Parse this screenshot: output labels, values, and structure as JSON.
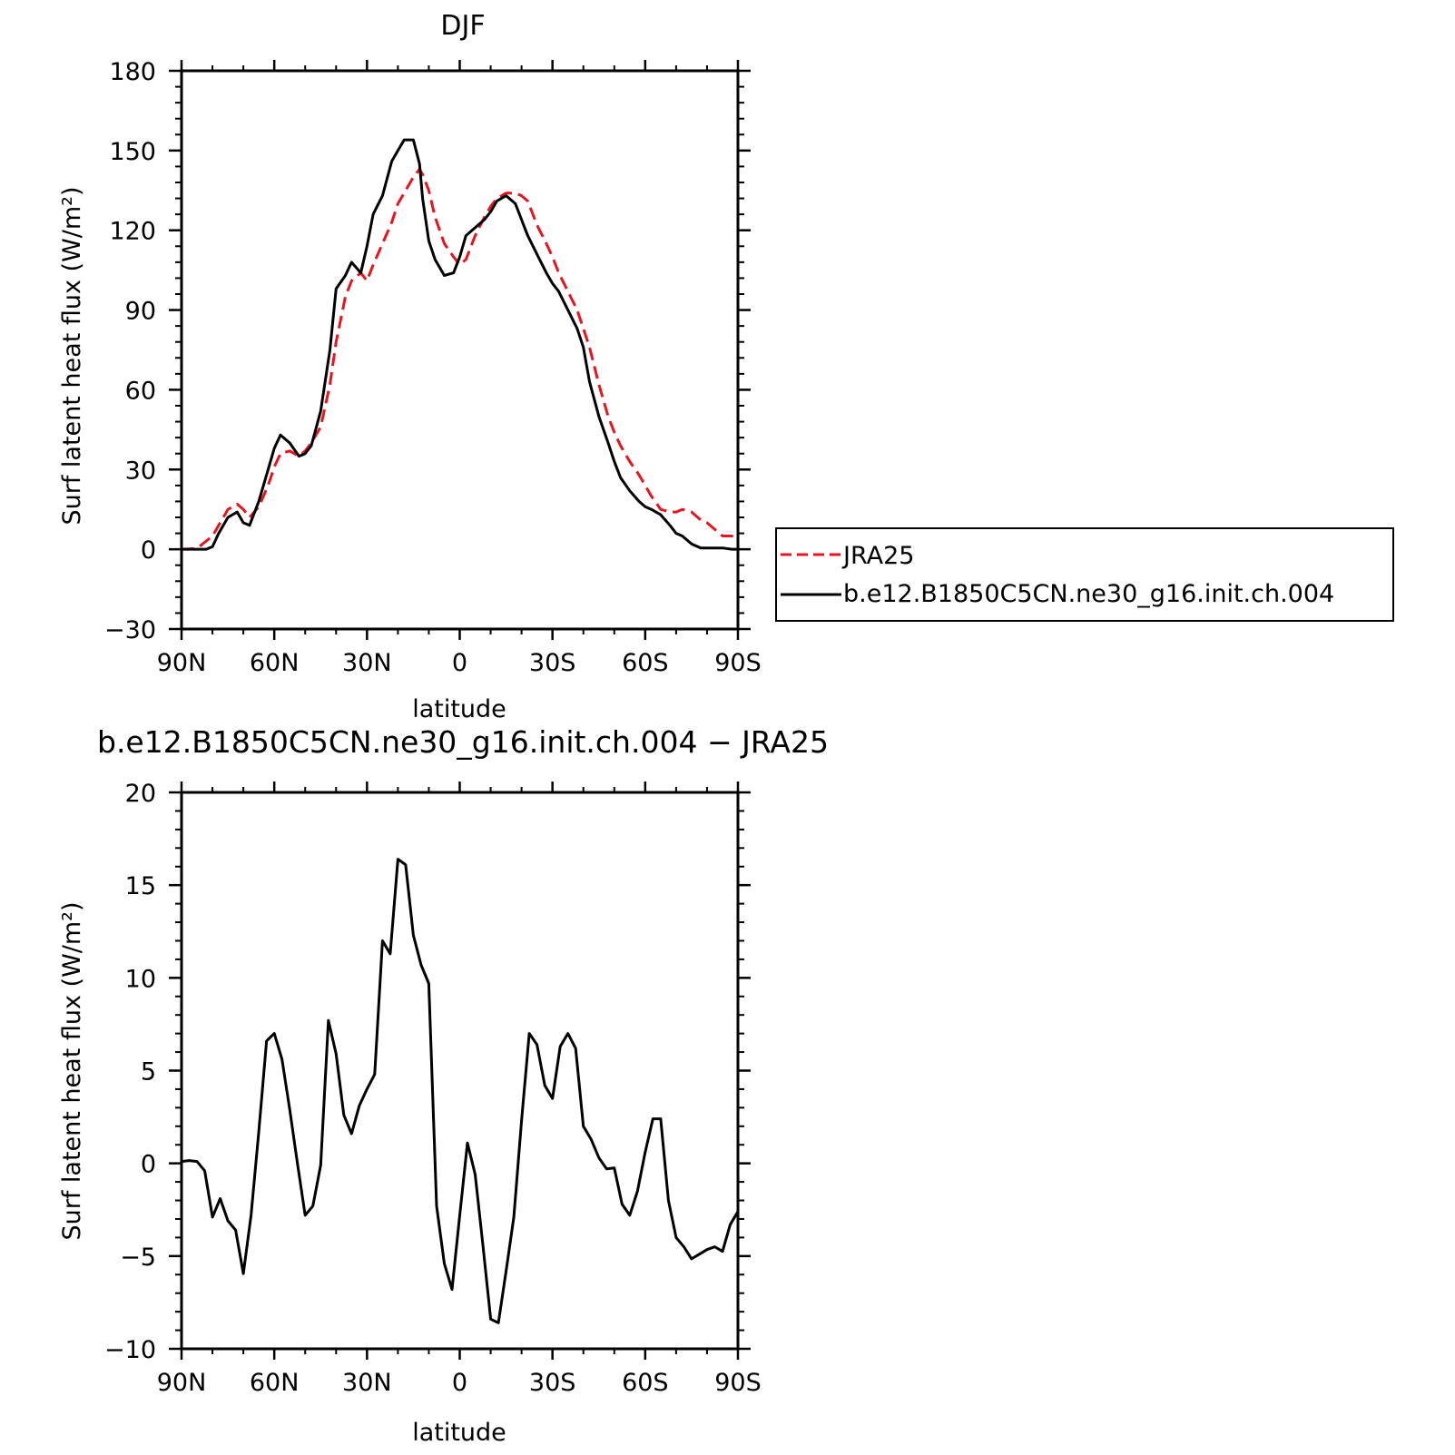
{
  "colors": {
    "model": "#000000",
    "obs": "#e8141e",
    "axes": "#000000",
    "background": "#ffffff"
  },
  "chart_data": [
    {
      "type": "line",
      "title": "DJF",
      "xlabel": "latitude",
      "ylabel": "Surf latent heat flux (W/m²)",
      "xlim": [
        90,
        -90
      ],
      "ylim": [
        -30,
        180
      ],
      "xticks": [
        90,
        60,
        30,
        0,
        -30,
        -60,
        -90
      ],
      "xticklabels": [
        "90N",
        "60N",
        "30N",
        "0",
        "30S",
        "60S",
        "90S"
      ],
      "yticks": [
        -30,
        0,
        30,
        60,
        90,
        120,
        150,
        180
      ],
      "yticklabels": [
        "−30",
        "0",
        "30",
        "60",
        "90",
        "120",
        "150",
        "180"
      ],
      "legend": {
        "placement": "right",
        "entries": [
          "JRA25",
          "b.e12.B1850C5CN.ne30_g16.init.ch.004"
        ]
      },
      "series": [
        {
          "name": "JRA25",
          "style": "dashed",
          "color": "#e8141e",
          "x": [
            90,
            85,
            80,
            78,
            75,
            72,
            70,
            68,
            65,
            62,
            60,
            58,
            55,
            52,
            50,
            48,
            45,
            42,
            40,
            37,
            35,
            32,
            30,
            28,
            25,
            22,
            20,
            18,
            15,
            13,
            12,
            10,
            8,
            5,
            2,
            0,
            -2,
            -5,
            -8,
            -10,
            -12,
            -15,
            -18,
            -20,
            -22,
            -25,
            -28,
            -30,
            -32,
            -35,
            -38,
            -40,
            -42,
            -45,
            -48,
            -50,
            -52,
            -55,
            -58,
            -60,
            -62,
            -65,
            -68,
            -70,
            -72,
            -75,
            -78,
            -80,
            -85,
            -88,
            -90
          ],
          "y": [
            0,
            0.3,
            5,
            9,
            15,
            17,
            15,
            12,
            16,
            24,
            31,
            36,
            37,
            35,
            37,
            40,
            46,
            62,
            78,
            95,
            101,
            104,
            101,
            107,
            115,
            123,
            130,
            134,
            140,
            143,
            141,
            135,
            125,
            115,
            110,
            107,
            109,
            118,
            125,
            129,
            132,
            134,
            134,
            133,
            131,
            122,
            115,
            110,
            104,
            97,
            90,
            83,
            76,
            62,
            50,
            44,
            39,
            33,
            28,
            24,
            20,
            15,
            14,
            14,
            15,
            14,
            11,
            10,
            5,
            5,
            3
          ]
        },
        {
          "name": "b.e12.B1850C5CN.ne30_g16.init.ch.004",
          "style": "solid",
          "color": "#000000",
          "x": [
            90,
            88,
            85,
            82,
            80,
            78,
            75,
            72,
            70,
            68,
            65,
            62,
            60,
            58,
            55,
            52,
            50,
            48,
            45,
            42,
            40,
            37,
            35,
            32,
            30,
            28,
            25,
            22,
            20,
            18,
            15,
            13,
            12,
            10,
            8,
            5,
            2,
            0,
            -2,
            -5,
            -8,
            -10,
            -12,
            -15,
            -18,
            -20,
            -22,
            -25,
            -28,
            -30,
            -32,
            -35,
            -38,
            -40,
            -42,
            -45,
            -48,
            -50,
            -52,
            -55,
            -58,
            -60,
            -62,
            -65,
            -68,
            -70,
            -72,
            -75,
            -78,
            -80,
            -82,
            -85,
            -88,
            -90
          ],
          "y": [
            0,
            0,
            0,
            0,
            1,
            6,
            12,
            14,
            10,
            9,
            18,
            30,
            38,
            43,
            40,
            35,
            36,
            39,
            52,
            75,
            98,
            103,
            108,
            104,
            114,
            126,
            133,
            146,
            150,
            154,
            154,
            145,
            132,
            116,
            109,
            103,
            104,
            110,
            118,
            121,
            124,
            127,
            131,
            133,
            130,
            124,
            118,
            111,
            104,
            100,
            97,
            90,
            83,
            76,
            63,
            50,
            40,
            33,
            27,
            22,
            18,
            16,
            15,
            13,
            9,
            6,
            5,
            2,
            0.5,
            0.5,
            0.5,
            0.5,
            0,
            0
          ]
        }
      ]
    },
    {
      "type": "line",
      "title": "b.e12.B1850C5CN.ne30_g16.init.ch.004 − JRA25",
      "xlabel": "latitude",
      "ylabel": "Surf latent heat flux (W/m²)",
      "xlim": [
        90,
        -90
      ],
      "ylim": [
        -10,
        20
      ],
      "xticks": [
        90,
        60,
        30,
        0,
        -30,
        -60,
        -90
      ],
      "xticklabels": [
        "90N",
        "60N",
        "30N",
        "0",
        "30S",
        "60S",
        "90S"
      ],
      "yticks": [
        -10,
        -5,
        0,
        5,
        10,
        15,
        20
      ],
      "yticklabels": [
        "−10",
        "−5",
        "0",
        "5",
        "10",
        "15",
        "20"
      ],
      "series": [
        {
          "style": "solid",
          "color": "#000000",
          "x": [
            90,
            87.5,
            85,
            82.5,
            80,
            77.5,
            75,
            72.5,
            70,
            67.5,
            65,
            62.5,
            60,
            57.5,
            55,
            52.5,
            50,
            47.5,
            45,
            42.5,
            40,
            37.5,
            35,
            32.5,
            30,
            27.5,
            25,
            22.5,
            20,
            17.5,
            15,
            12.5,
            10,
            7.5,
            5,
            2.5,
            0,
            -2.5,
            -5,
            -7.5,
            -10,
            -12.5,
            -15,
            -17.5,
            -20,
            -22.5,
            -25,
            -27.5,
            -30,
            -32.5,
            -35,
            -37.5,
            -40,
            -42.5,
            -45,
            -47.5,
            -50,
            -52.5,
            -55,
            -57.5,
            -60,
            -62.5,
            -65,
            -67.5,
            -70,
            -72.5,
            -75,
            -77.5,
            -80,
            -82.5,
            -85,
            -87.5,
            -90
          ],
          "y": [
            0.1,
            0.15,
            0.1,
            -0.4,
            -2.9,
            -1.9,
            -3.1,
            -3.6,
            -5.95,
            -2.8,
            1.7,
            6.6,
            7.0,
            5.6,
            2.9,
            0,
            -2.8,
            -2.3,
            -0.1,
            7.7,
            5.9,
            2.6,
            1.6,
            3.1,
            4.0,
            4.8,
            12.0,
            11.3,
            16.4,
            16.1,
            12.3,
            10.7,
            9.7,
            -2.3,
            -5.4,
            -6.8,
            -2.8,
            1.1,
            -0.6,
            -4.4,
            -8.4,
            -8.6,
            -5.8,
            -2.9,
            2.3,
            7.0,
            6.4,
            4.2,
            3.5,
            6.3,
            7.0,
            6.2,
            2.0,
            1.3,
            0.3,
            -0.3,
            -0.25,
            -2.2,
            -2.8,
            -1.5,
            0.6,
            2.4,
            2.4,
            -2.0,
            -4.0,
            -4.5,
            -5.15,
            -4.9,
            -4.65,
            -4.5,
            -4.75,
            -3.3,
            -2.6
          ]
        }
      ]
    }
  ]
}
